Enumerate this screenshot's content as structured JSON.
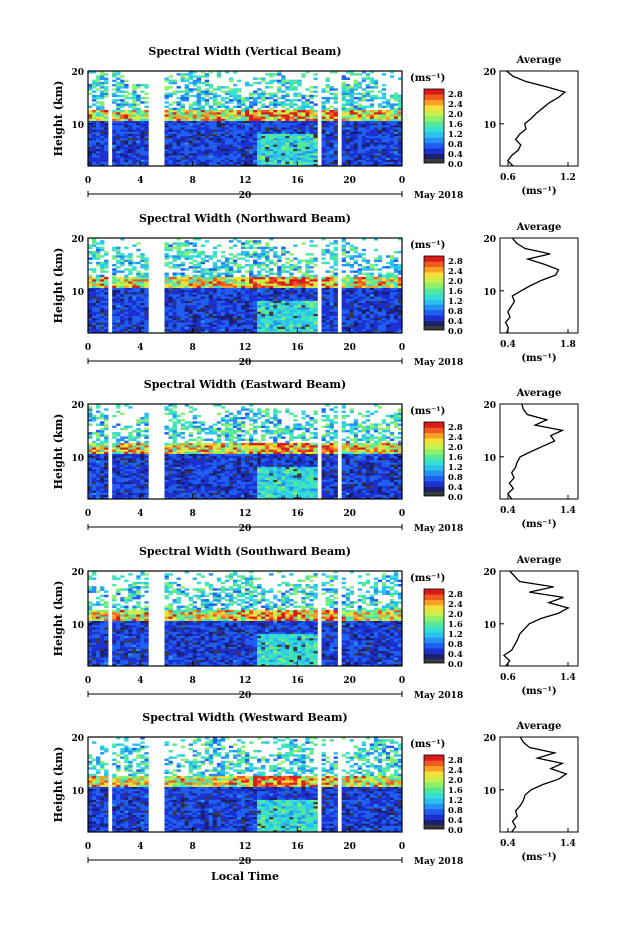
{
  "colors": {
    "scale": [
      "#1a1f6e",
      "#1c2fd0",
      "#1e5ff0",
      "#2591f5",
      "#2cc0ee",
      "#35e0d0",
      "#55e89a",
      "#8ef06a",
      "#c8f04a",
      "#f5e03a",
      "#f8a028",
      "#f05a1e",
      "#d81c1c"
    ],
    "zero": "#3a3a3a",
    "gap": "#ffffff",
    "profile": "#000000"
  },
  "colorbar": {
    "unit": "(ms⁻¹)",
    "ticks": [
      "2.8",
      "2.4",
      "2.0",
      "1.6",
      "1.2",
      "0.8",
      "0.4",
      "0.0"
    ]
  },
  "date_label": "May 2018",
  "day_label": "20",
  "xlabel": "Local Time",
  "ylabel": "Height (km)",
  "average_title": "Average",
  "average_xlabel": "(ms⁻¹)",
  "chart_data": [
    {
      "type": "heatmap",
      "title": "Spectral Width (Vertical Beam)",
      "xlabel": "Local Time",
      "ylabel": "Height (km)",
      "xlim": [
        0,
        24
      ],
      "xticks": [
        "0",
        "4",
        "8",
        "12",
        "16",
        "20",
        "0"
      ],
      "ylim": [
        2,
        20
      ],
      "yticks": [
        "20",
        "10"
      ],
      "colorbar_range": [
        0.0,
        3.0
      ],
      "gaps_hours": [
        [
          1.5,
          1.7
        ],
        [
          4.6,
          5.8
        ],
        [
          17.5,
          17.8
        ],
        [
          19.1,
          19.3
        ]
      ],
      "average_profile": {
        "xlim": [
          0.6,
          1.2
        ],
        "xticks": [
          "0.6",
          "1.2"
        ],
        "yticks": [
          "20",
          "10"
        ],
        "points": [
          [
            0.7,
            2
          ],
          [
            0.66,
            3
          ],
          [
            0.69,
            4
          ],
          [
            0.74,
            5
          ],
          [
            0.76,
            6
          ],
          [
            0.72,
            7
          ],
          [
            0.75,
            8
          ],
          [
            0.8,
            9
          ],
          [
            0.79,
            10
          ],
          [
            0.84,
            11
          ],
          [
            0.88,
            12
          ],
          [
            0.93,
            13
          ],
          [
            0.98,
            14
          ],
          [
            1.05,
            15
          ],
          [
            1.1,
            16
          ],
          [
            0.96,
            17
          ],
          [
            0.8,
            18
          ],
          [
            0.7,
            19
          ],
          [
            0.65,
            20
          ]
        ]
      }
    },
    {
      "type": "heatmap",
      "title": "Spectral Width (Northward Beam)",
      "xlabel": "Local Time",
      "ylabel": "Height (km)",
      "xlim": [
        0,
        24
      ],
      "xticks": [
        "0",
        "4",
        "8",
        "12",
        "16",
        "20",
        "0"
      ],
      "ylim": [
        2,
        20
      ],
      "yticks": [
        "20",
        "10"
      ],
      "colorbar_range": [
        0.0,
        3.0
      ],
      "gaps_hours": [
        [
          1.5,
          1.7
        ],
        [
          4.6,
          5.8
        ],
        [
          17.5,
          17.8
        ],
        [
          19.1,
          19.3
        ]
      ],
      "average_profile": {
        "xlim": [
          0.4,
          1.8
        ],
        "xticks": [
          "0.4",
          "1.8"
        ],
        "yticks": [
          "20",
          "10"
        ],
        "points": [
          [
            0.52,
            2
          ],
          [
            0.55,
            3
          ],
          [
            0.5,
            4
          ],
          [
            0.58,
            5
          ],
          [
            0.54,
            6
          ],
          [
            0.6,
            7
          ],
          [
            0.66,
            8
          ],
          [
            0.62,
            9
          ],
          [
            0.78,
            10
          ],
          [
            0.95,
            11
          ],
          [
            1.15,
            12
          ],
          [
            1.4,
            13
          ],
          [
            1.45,
            14
          ],
          [
            1.2,
            15
          ],
          [
            0.9,
            16
          ],
          [
            1.3,
            17
          ],
          [
            0.85,
            18
          ],
          [
            0.7,
            19
          ],
          [
            0.62,
            20
          ]
        ]
      }
    },
    {
      "type": "heatmap",
      "title": "Spectral Width (Eastward Beam)",
      "xlabel": "Local Time",
      "ylabel": "Height (km)",
      "xlim": [
        0,
        24
      ],
      "xticks": [
        "0",
        "4",
        "8",
        "12",
        "16",
        "20",
        "0"
      ],
      "ylim": [
        2,
        20
      ],
      "yticks": [
        "20",
        "10"
      ],
      "colorbar_range": [
        0.0,
        3.0
      ],
      "gaps_hours": [
        [
          1.5,
          1.7
        ],
        [
          4.6,
          5.8
        ],
        [
          17.5,
          17.8
        ],
        [
          19.1,
          19.3
        ]
      ],
      "average_profile": {
        "xlim": [
          0.4,
          1.4
        ],
        "xticks": [
          "0.4",
          "1.4"
        ],
        "yticks": [
          "20",
          "10"
        ],
        "points": [
          [
            0.55,
            2
          ],
          [
            0.5,
            3
          ],
          [
            0.57,
            4
          ],
          [
            0.52,
            5
          ],
          [
            0.58,
            6
          ],
          [
            0.55,
            7
          ],
          [
            0.6,
            8
          ],
          [
            0.62,
            9
          ],
          [
            0.66,
            10
          ],
          [
            0.8,
            11
          ],
          [
            0.95,
            12
          ],
          [
            1.1,
            13
          ],
          [
            1.05,
            14
          ],
          [
            1.2,
            15
          ],
          [
            0.85,
            16
          ],
          [
            1.0,
            17
          ],
          [
            0.75,
            18
          ],
          [
            0.7,
            19
          ],
          [
            0.68,
            20
          ]
        ]
      }
    },
    {
      "type": "heatmap",
      "title": "Spectral Width (Southward Beam)",
      "xlabel": "Local Time",
      "ylabel": "Height (km)",
      "xlim": [
        0,
        24
      ],
      "xticks": [
        "0",
        "4",
        "8",
        "12",
        "16",
        "20",
        "0"
      ],
      "ylim": [
        2,
        20
      ],
      "yticks": [
        "20",
        "10"
      ],
      "colorbar_range": [
        0.0,
        3.0
      ],
      "gaps_hours": [
        [
          1.5,
          1.7
        ],
        [
          4.6,
          5.8
        ],
        [
          17.5,
          17.8
        ],
        [
          19.1,
          19.3
        ]
      ],
      "average_profile": {
        "xlim": [
          0.6,
          1.4
        ],
        "xticks": [
          "0.6",
          "1.4"
        ],
        "yticks": [
          "20",
          "10"
        ],
        "points": [
          [
            0.66,
            2
          ],
          [
            0.7,
            3
          ],
          [
            0.64,
            4
          ],
          [
            0.72,
            5
          ],
          [
            0.75,
            6
          ],
          [
            0.78,
            7
          ],
          [
            0.8,
            8
          ],
          [
            0.85,
            9
          ],
          [
            0.9,
            10
          ],
          [
            1.02,
            11
          ],
          [
            1.2,
            12
          ],
          [
            1.3,
            13
          ],
          [
            1.1,
            14
          ],
          [
            1.25,
            15
          ],
          [
            0.9,
            16
          ],
          [
            1.15,
            17
          ],
          [
            0.8,
            18
          ],
          [
            0.75,
            19
          ],
          [
            0.7,
            20
          ]
        ]
      }
    },
    {
      "type": "heatmap",
      "title": "Spectral Width (Westward Beam)",
      "xlabel": "Local Time",
      "ylabel": "Height (km)",
      "xlim": [
        0,
        24
      ],
      "xticks": [
        "0",
        "4",
        "8",
        "12",
        "16",
        "20",
        "0"
      ],
      "ylim": [
        2,
        20
      ],
      "yticks": [
        "20",
        "10"
      ],
      "colorbar_range": [
        0.0,
        3.0
      ],
      "gaps_hours": [
        [
          1.5,
          1.7
        ],
        [
          4.6,
          5.8
        ],
        [
          17.5,
          17.8
        ],
        [
          19.1,
          19.3
        ]
      ],
      "average_profile": {
        "xlim": [
          0.4,
          1.4
        ],
        "xticks": [
          "0.4",
          "1.4"
        ],
        "yticks": [
          "20",
          "10"
        ],
        "points": [
          [
            0.55,
            2
          ],
          [
            0.6,
            3
          ],
          [
            0.56,
            4
          ],
          [
            0.62,
            5
          ],
          [
            0.6,
            6
          ],
          [
            0.66,
            7
          ],
          [
            0.7,
            8
          ],
          [
            0.72,
            9
          ],
          [
            0.8,
            10
          ],
          [
            0.95,
            11
          ],
          [
            1.15,
            12
          ],
          [
            1.25,
            13
          ],
          [
            1.05,
            14
          ],
          [
            1.2,
            15
          ],
          [
            0.88,
            16
          ],
          [
            1.1,
            17
          ],
          [
            0.78,
            18
          ],
          [
            0.7,
            19
          ],
          [
            0.66,
            20
          ]
        ]
      }
    }
  ]
}
